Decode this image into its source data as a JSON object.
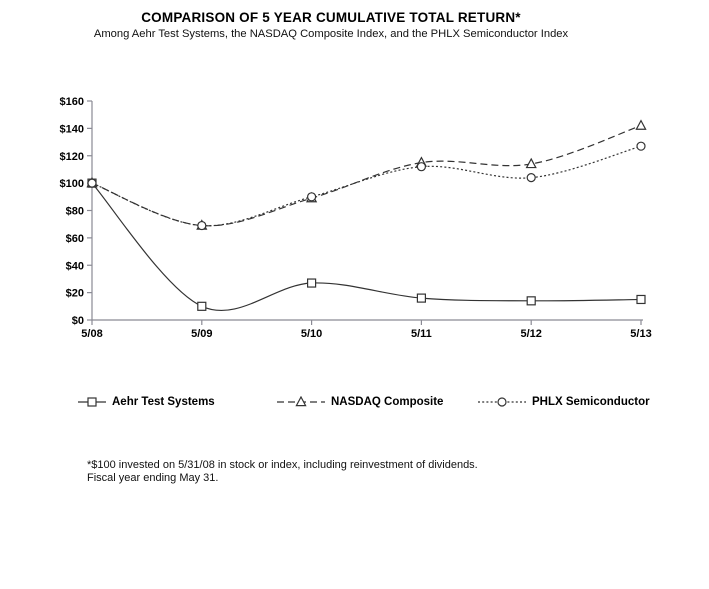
{
  "chart_data": {
    "type": "line",
    "title": "COMPARISON OF 5 YEAR CUMULATIVE TOTAL RETURN*",
    "subtitle": "Among Aehr Test Systems, the NASDAQ Composite Index, and the PHLX Semiconductor Index",
    "categories": [
      "5/08",
      "5/09",
      "5/10",
      "5/11",
      "5/12",
      "5/13"
    ],
    "y_ticks": [
      "$0",
      "$20",
      "$40",
      "$60",
      "$80",
      "$100",
      "$120",
      "$140",
      "$160"
    ],
    "ylim": [
      0,
      160
    ],
    "y_tick_step": 20,
    "xlabel": "",
    "ylabel": "",
    "grid": false,
    "legend_position": "bottom",
    "series": [
      {
        "name": "Aehr Test Systems",
        "marker": "square",
        "dash": "solid",
        "values": [
          100,
          10,
          27,
          16,
          14,
          15
        ]
      },
      {
        "name": "NASDAQ Composite",
        "marker": "triangle",
        "dash": "dashed",
        "values": [
          100,
          69,
          89,
          115,
          114,
          142
        ]
      },
      {
        "name": "PHLX Semiconductor",
        "marker": "circle",
        "dash": "dotted",
        "values": [
          100,
          69,
          90,
          112,
          104,
          127
        ]
      }
    ]
  },
  "colors": {
    "line": "#333333",
    "axis": "#8a8a94",
    "marker_fill": "#ffffff",
    "text": "#000000",
    "background": "#ffffff"
  },
  "footnote": {
    "line1": "*$100 invested on 5/31/08 in stock or index, including reinvestment of dividends.",
    "line2": "Fiscal year ending May 31."
  }
}
